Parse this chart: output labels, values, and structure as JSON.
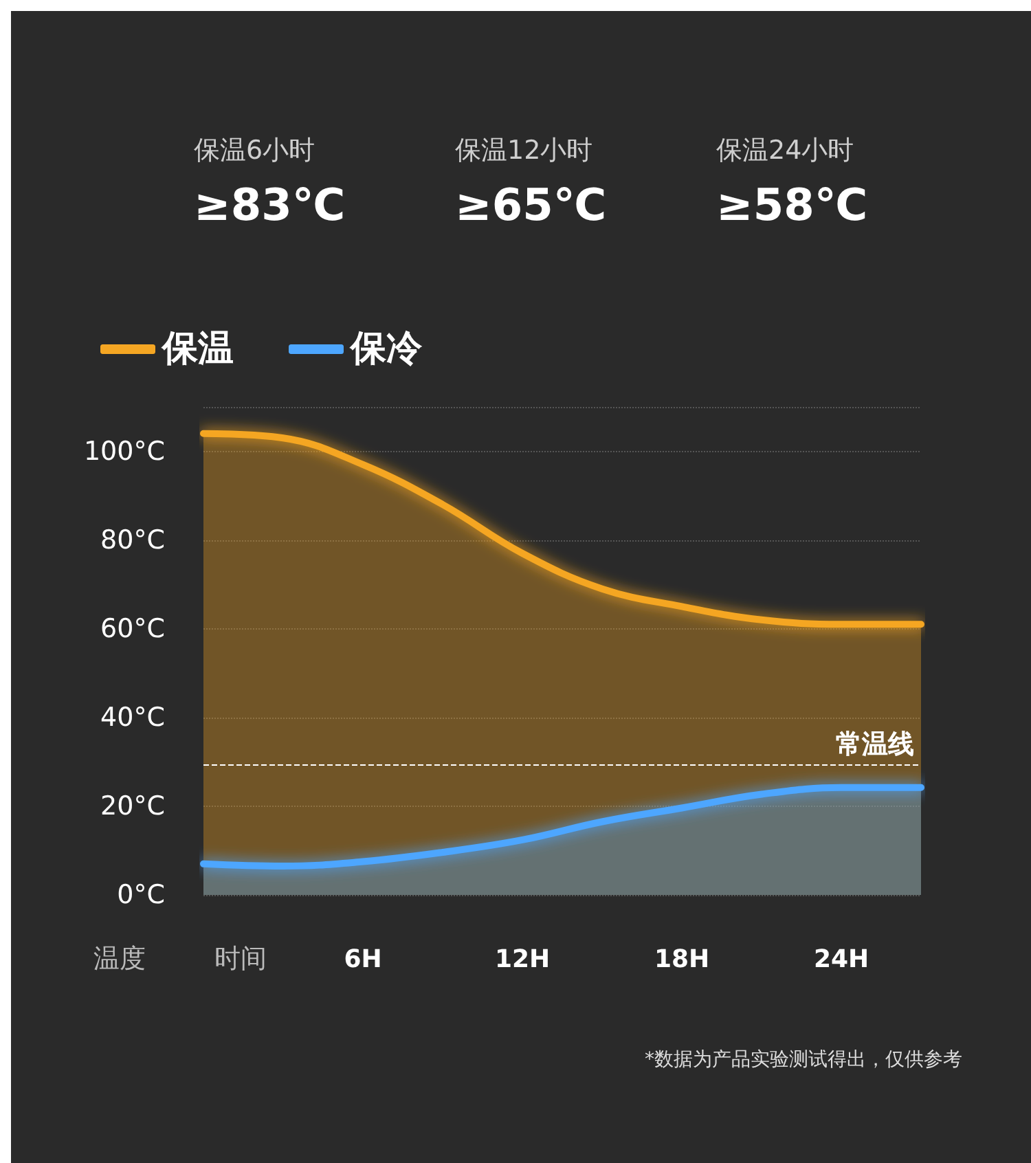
{
  "chart_data": {
    "type": "area",
    "x": [
      0,
      3,
      6,
      9,
      12,
      15,
      18,
      21,
      24,
      27
    ],
    "series": [
      {
        "name": "保温",
        "color": "#f5a623",
        "values": [
          104,
          103,
          97,
          88,
          77,
          69,
          65,
          62,
          61,
          61
        ]
      },
      {
        "name": "保冷",
        "color": "#4da6ff",
        "values": [
          7,
          6.5,
          7.5,
          9.6,
          12.4,
          16.5,
          19.6,
          22.7,
          24.2,
          24.2
        ]
      }
    ],
    "xlabel": "时间",
    "ylabel": "温度",
    "xlim": [
      0,
      27
    ],
    "xticks": [
      {
        "value": 6,
        "label": "6H"
      },
      {
        "value": 12,
        "label": "12H"
      },
      {
        "value": 18,
        "label": "18H"
      },
      {
        "value": 24,
        "label": "24H"
      }
    ],
    "ylim": [
      0,
      110
    ],
    "yticks": [
      {
        "value": 0,
        "label": "0°C"
      },
      {
        "value": 20,
        "label": "20°C"
      },
      {
        "value": 40,
        "label": "40°C"
      },
      {
        "value": 60,
        "label": "60°C"
      },
      {
        "value": 80,
        "label": "80°C"
      },
      {
        "value": 100,
        "label": "100°C"
      },
      {
        "value": 110,
        "label": null
      }
    ],
    "ref_lines": [
      {
        "axis": "y",
        "value": 29.5,
        "label": "常温线",
        "color": "#ffffff",
        "line_style": "dashed"
      }
    ],
    "grid": "y",
    "legend": "top left",
    "marker": "none",
    "annotations": [
      "保温6小时",
      "≥83℃",
      "保温12小时",
      "≥65℃",
      "保温24小时",
      "≥58℃",
      "*数据为产品实验测试得出，仅供参考"
    ]
  }
}
